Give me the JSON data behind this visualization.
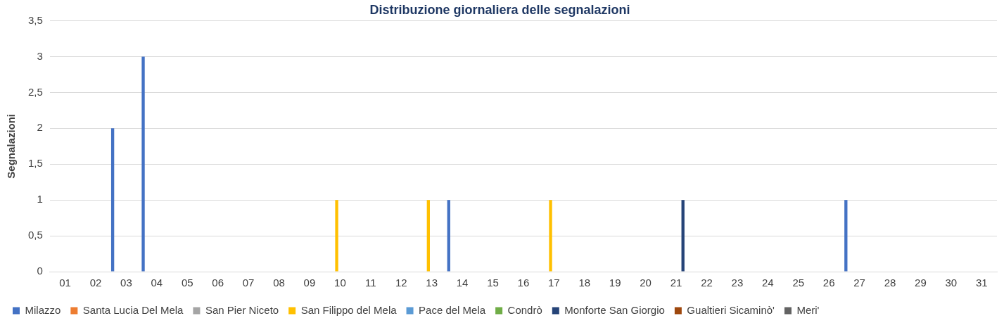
{
  "chart_data": {
    "type": "bar",
    "title": "Distribuzione giornaliera delle segnalazioni",
    "ylabel": "Segnalazioni",
    "categories": [
      "01",
      "02",
      "03",
      "04",
      "05",
      "06",
      "07",
      "08",
      "09",
      "10",
      "11",
      "12",
      "13",
      "14",
      "15",
      "16",
      "17",
      "18",
      "19",
      "20",
      "21",
      "22",
      "23",
      "24",
      "25",
      "26",
      "27",
      "28",
      "29",
      "30",
      "31"
    ],
    "series": [
      {
        "name": "Milazzo",
        "color": "#4472c4",
        "values": [
          0,
          0,
          2,
          3,
          0,
          0,
          0,
          0,
          0,
          0,
          0,
          0,
          0,
          1,
          0,
          0,
          0,
          0,
          0,
          0,
          0,
          0,
          0,
          0,
          0,
          0,
          1,
          0,
          0,
          0,
          0
        ]
      },
      {
        "name": "Santa Lucia Del Mela",
        "color": "#ed7d31",
        "values": [
          0,
          0,
          0,
          0,
          0,
          0,
          0,
          0,
          0,
          0,
          0,
          0,
          0,
          0,
          0,
          0,
          0,
          0,
          0,
          0,
          0,
          0,
          0,
          0,
          0,
          0,
          0,
          0,
          0,
          0,
          0
        ]
      },
      {
        "name": "San Pier Niceto",
        "color": "#a5a5a5",
        "values": [
          0,
          0,
          0,
          0,
          0,
          0,
          0,
          0,
          0,
          0,
          0,
          0,
          0,
          0,
          0,
          0,
          0,
          0,
          0,
          0,
          0,
          0,
          0,
          0,
          0,
          0,
          0,
          0,
          0,
          0,
          0
        ]
      },
      {
        "name": "San Filippo del Mela",
        "color": "#ffc000",
        "values": [
          0,
          0,
          0,
          0,
          0,
          0,
          0,
          0,
          0,
          1,
          0,
          0,
          1,
          0,
          0,
          0,
          1,
          0,
          0,
          0,
          0,
          0,
          0,
          0,
          0,
          0,
          0,
          0,
          0,
          0,
          0
        ]
      },
      {
        "name": "Pace del Mela",
        "color": "#5b9bd5",
        "values": [
          0,
          0,
          0,
          0,
          0,
          0,
          0,
          0,
          0,
          0,
          0,
          0,
          0,
          0,
          0,
          0,
          0,
          0,
          0,
          0,
          0,
          0,
          0,
          0,
          0,
          0,
          0,
          0,
          0,
          0,
          0
        ]
      },
      {
        "name": "Condrò",
        "color": "#70ad47",
        "values": [
          0,
          0,
          0,
          0,
          0,
          0,
          0,
          0,
          0,
          0,
          0,
          0,
          0,
          0,
          0,
          0,
          0,
          0,
          0,
          0,
          0,
          0,
          0,
          0,
          0,
          0,
          0,
          0,
          0,
          0,
          0
        ]
      },
      {
        "name": "Monforte San Giorgio",
        "color": "#264478",
        "values": [
          0,
          0,
          0,
          0,
          0,
          0,
          0,
          0,
          0,
          0,
          0,
          0,
          0,
          0,
          0,
          0,
          0,
          0,
          0,
          0,
          1,
          0,
          0,
          0,
          0,
          0,
          0,
          0,
          0,
          0,
          0
        ]
      },
      {
        "name": "Gualtieri Sicaminò'",
        "color": "#9e480e",
        "values": [
          0,
          0,
          0,
          0,
          0,
          0,
          0,
          0,
          0,
          0,
          0,
          0,
          0,
          0,
          0,
          0,
          0,
          0,
          0,
          0,
          0,
          0,
          0,
          0,
          0,
          0,
          0,
          0,
          0,
          0,
          0
        ]
      },
      {
        "name": "Meri'",
        "color": "#636363",
        "values": [
          0,
          0,
          0,
          0,
          0,
          0,
          0,
          0,
          0,
          0,
          0,
          0,
          0,
          0,
          0,
          0,
          0,
          0,
          0,
          0,
          0,
          0,
          0,
          0,
          0,
          0,
          0,
          0,
          0,
          0,
          0
        ]
      }
    ],
    "ylim": [
      0,
      3.5
    ],
    "yticks": [
      0,
      {
        "value": 0.5,
        "label": "0,5"
      },
      1,
      {
        "value": 1.5,
        "label": "1,5"
      },
      2,
      {
        "value": 2.5,
        "label": "2,5"
      },
      3,
      {
        "value": 3.5,
        "label": "3,5"
      }
    ],
    "grid": "y",
    "legend": "bottom"
  }
}
